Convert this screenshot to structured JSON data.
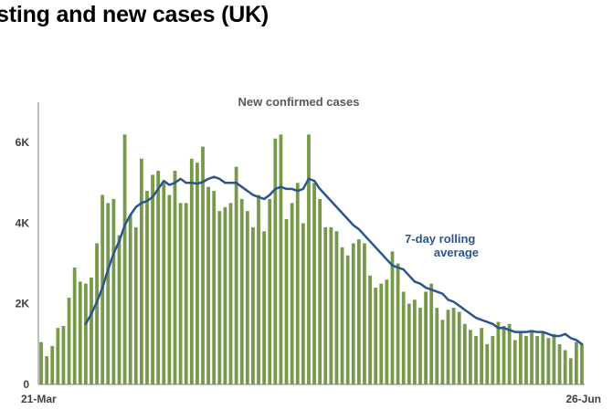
{
  "page": {
    "title": "sting and new cases (UK)"
  },
  "colors": {
    "bars": "#76994a",
    "line": "#2b5591",
    "axis": "#7f7f7f",
    "text": "#404040"
  },
  "chart_data": {
    "type": "bar",
    "title": "New confirmed cases",
    "xlabel": "",
    "ylabel": "",
    "x_start_label": "21-Mar",
    "x_end_label": "26-Jun",
    "yticks": [
      {
        "value": 0,
        "label": "0"
      },
      {
        "value": 2000,
        "label": "2K"
      },
      {
        "value": 4000,
        "label": "4K"
      },
      {
        "value": 6000,
        "label": "6K"
      }
    ],
    "ylim": [
      0,
      7000
    ],
    "grid": false,
    "series": [
      {
        "type": "bar",
        "values": [
          1050,
          700,
          950,
          1400,
          1450,
          2150,
          2900,
          2550,
          2500,
          2650,
          3500,
          4700,
          4500,
          4600,
          3700,
          6200,
          4200,
          3900,
          5600,
          4800,
          5200,
          5300,
          5000,
          4700,
          5300,
          4500,
          4500,
          5600,
          5500,
          5900,
          4900,
          4800,
          4300,
          4400,
          4500,
          5400,
          4600,
          4300,
          3900,
          4700,
          3800,
          4600,
          6100,
          6200,
          4100,
          4500,
          5000,
          4000,
          6200,
          5000,
          4600,
          3900,
          3900,
          3800,
          3400,
          3200,
          3500,
          3600,
          3500,
          2700,
          2400,
          2500,
          2600,
          3300,
          3000,
          2300,
          2000,
          2100,
          1900,
          2300,
          2500,
          1900,
          1600,
          1850,
          1900,
          1800,
          1500,
          1350,
          1200,
          1400,
          1000,
          1200,
          1550,
          1450,
          1500,
          1100,
          1300,
          1200,
          1350,
          1200,
          1300,
          1150,
          1250,
          1000,
          850,
          650,
          1050,
          1000
        ]
      },
      {
        "type": "line",
        "values": [
          null,
          null,
          null,
          null,
          null,
          null,
          null,
          null,
          1500,
          1750,
          2050,
          2400,
          2850,
          3250,
          3550,
          3950,
          4200,
          4400,
          4500,
          4550,
          4650,
          4850,
          5050,
          4950,
          5000,
          5100,
          5000,
          5000,
          4980,
          5020,
          5100,
          5150,
          5100,
          5000,
          5000,
          5000,
          4900,
          4800,
          4700,
          4650,
          4600,
          4700,
          4850,
          4900,
          4850,
          4850,
          4800,
          4850,
          5100,
          5050,
          4850,
          4700,
          4550,
          4400,
          4250,
          4100,
          3950,
          3850,
          3700,
          3550,
          3400,
          3250,
          3100,
          2950,
          2900,
          2850,
          2700,
          2550,
          2500,
          2400,
          2350,
          2300,
          2250,
          2100,
          2050,
          1950,
          1850,
          1750,
          1650,
          1600,
          1550,
          1500,
          1400,
          1400,
          1350,
          1300,
          1300,
          1300,
          1320,
          1300,
          1300,
          1250,
          1200,
          1200,
          1250,
          1150,
          1100,
          1000
        ]
      }
    ],
    "annotations": [
      {
        "lines": [
          "7-day rolling",
          "average"
        ]
      }
    ]
  }
}
